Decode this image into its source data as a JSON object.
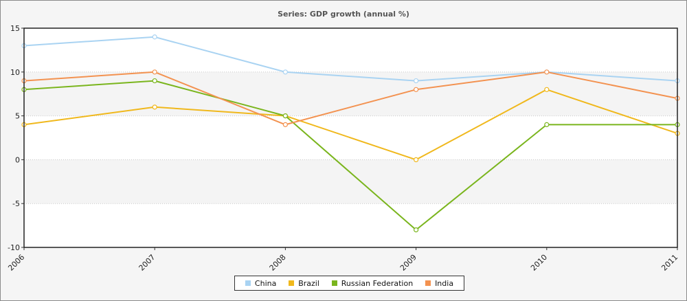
{
  "chart_data": {
    "type": "line",
    "title": "Series: GDP growth (annual %)",
    "xlabel": "",
    "ylabel": "",
    "categories": [
      "2006",
      "2007",
      "2008",
      "2009",
      "2010",
      "2011"
    ],
    "ylim": [
      -10,
      15
    ],
    "yticks": [
      "15",
      "10",
      "5",
      "0",
      "-5",
      "-10"
    ],
    "grid": "horizontal dotted",
    "legend_position": "bottom-center",
    "series": [
      {
        "name": "China",
        "color": "#a9d3f2",
        "values": [
          13,
          14,
          10,
          9,
          10,
          9
        ]
      },
      {
        "name": "Brazil",
        "color": "#f0b81c",
        "values": [
          4,
          6,
          5,
          0,
          8,
          3
        ]
      },
      {
        "name": "Russian Federation",
        "color": "#7ab51d",
        "values": [
          8,
          9,
          5,
          -8,
          4,
          4
        ]
      },
      {
        "name": "India",
        "color": "#f39250",
        "values": [
          9,
          10,
          4,
          8,
          10,
          7
        ]
      }
    ]
  }
}
